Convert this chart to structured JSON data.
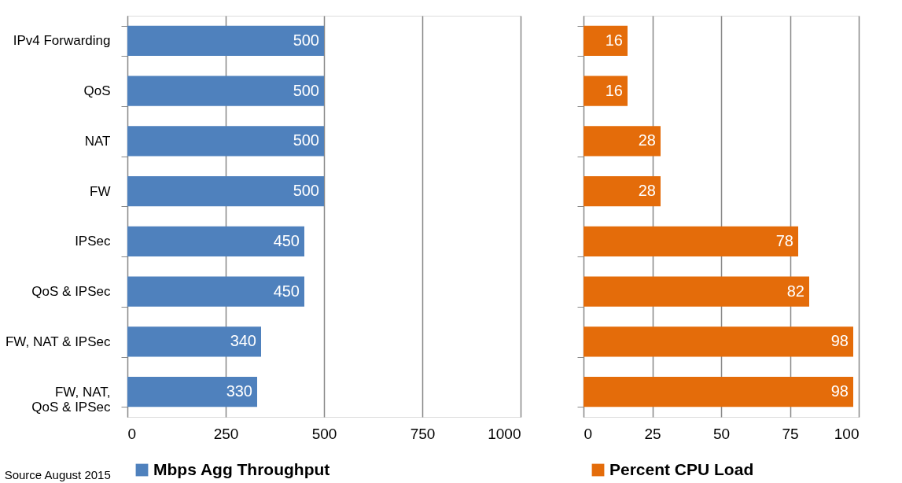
{
  "chart_data": [
    {
      "type": "bar",
      "orientation": "horizontal",
      "categories": [
        "IPv4 Forwarding",
        "QoS",
        "NAT",
        "FW",
        "IPSec",
        "QoS & IPSec",
        "FW, NAT & IPSec",
        "FW, NAT, QoS & IPSec"
      ],
      "series": [
        {
          "name": "Mbps Agg Throughput",
          "color": "#4f81bd",
          "values": [
            500,
            500,
            500,
            500,
            450,
            450,
            340,
            330
          ]
        }
      ],
      "xlim": [
        0,
        1000
      ],
      "xticks": [
        0,
        250,
        500,
        750,
        1000
      ],
      "grid": "x",
      "data_labels": true,
      "legend": "bottom",
      "annotations": [
        "Source August 2015"
      ]
    },
    {
      "type": "bar",
      "orientation": "horizontal",
      "categories": [
        "IPv4 Forwarding",
        "QoS",
        "NAT",
        "FW",
        "IPSec",
        "QoS & IPSec",
        "FW, NAT & IPSec",
        "FW, NAT, QoS & IPSec"
      ],
      "series": [
        {
          "name": "Percent CPU Load",
          "color": "#e46c0a",
          "values": [
            16,
            16,
            28,
            28,
            78,
            82,
            98,
            98
          ]
        }
      ],
      "xlim": [
        0,
        100
      ],
      "xticks": [
        0,
        25,
        50,
        75,
        100
      ],
      "grid": "x",
      "data_labels": true,
      "legend": "bottom",
      "tick_labels": "x"
    }
  ]
}
